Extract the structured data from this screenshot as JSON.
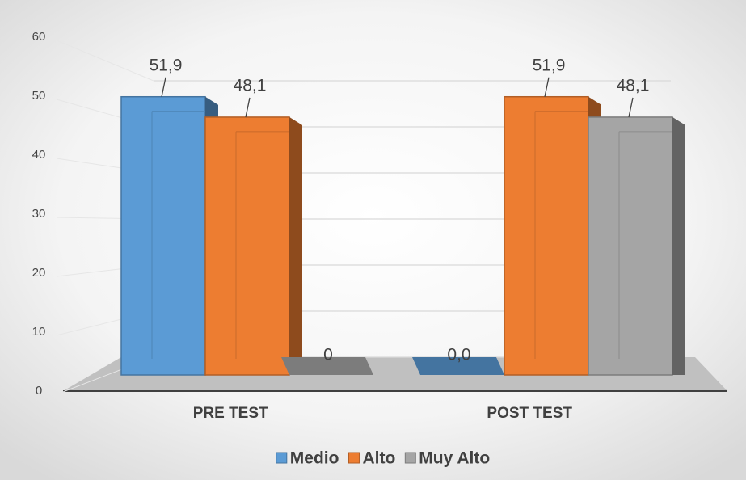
{
  "chart_data": {
    "type": "bar3d",
    "categories": [
      "PRE TEST",
      "POST TEST"
    ],
    "series": [
      {
        "name": "Medio",
        "color": "#5b9bd5",
        "values": [
          51.9,
          0
        ],
        "value_labels": [
          "51,9",
          "0,0"
        ]
      },
      {
        "name": "Alto",
        "color": "#ed7d31",
        "values": [
          48.1,
          51.9
        ],
        "value_labels": [
          "48,1",
          "51,9"
        ]
      },
      {
        "name": "Muy Alto",
        "color": "#a5a5a5",
        "values": [
          0,
          48.1
        ],
        "value_labels": [
          "0",
          "48,1"
        ]
      }
    ],
    "ylim": [
      0,
      60
    ],
    "yticks": [
      0,
      10,
      20,
      30,
      40,
      50,
      60
    ],
    "grid": true,
    "legend": "bottom"
  }
}
